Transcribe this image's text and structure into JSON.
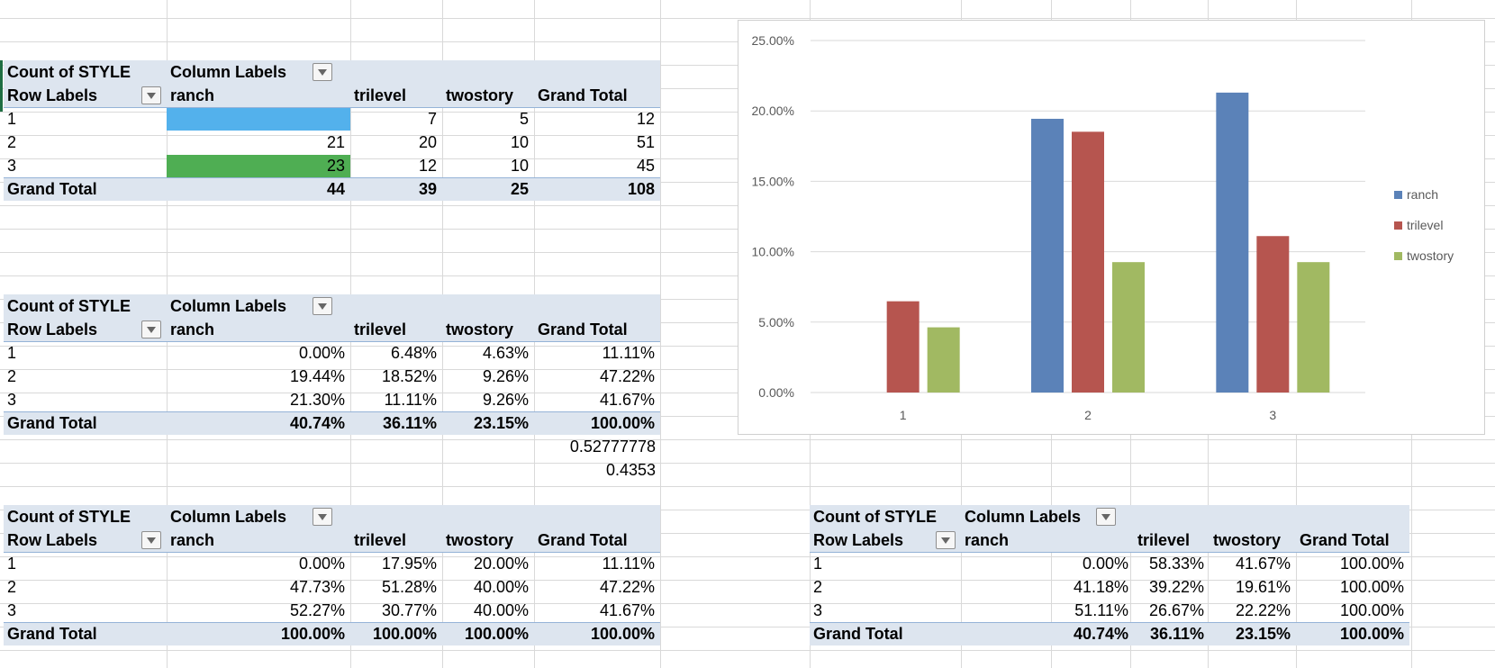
{
  "pivots": [
    {
      "id": "p1",
      "count_label": "Count of STYLE",
      "column_labels": "Column Labels",
      "row_labels": "Row Labels",
      "headers": [
        "ranch",
        "trilevel",
        "twostory",
        "Grand Total"
      ],
      "rows": [
        {
          "label": "1",
          "cells": [
            "",
            "7",
            "5",
            "12"
          ]
        },
        {
          "label": "2",
          "cells": [
            "21",
            "20",
            "10",
            "51"
          ]
        },
        {
          "label": "3",
          "cells": [
            "23",
            "12",
            "10",
            "45"
          ]
        }
      ],
      "total": {
        "label": "Grand Total",
        "cells": [
          "44",
          "39",
          "25",
          "108"
        ]
      }
    },
    {
      "id": "p2",
      "count_label": "Count of STYLE",
      "column_labels": "Column Labels",
      "row_labels": "Row Labels",
      "headers": [
        "ranch",
        "trilevel",
        "twostory",
        "Grand Total"
      ],
      "rows": [
        {
          "label": "1",
          "cells": [
            "0.00%",
            "6.48%",
            "4.63%",
            "11.11%"
          ]
        },
        {
          "label": "2",
          "cells": [
            "19.44%",
            "18.52%",
            "9.26%",
            "47.22%"
          ]
        },
        {
          "label": "3",
          "cells": [
            "21.30%",
            "11.11%",
            "9.26%",
            "41.67%"
          ]
        }
      ],
      "total": {
        "label": "Grand Total",
        "cells": [
          "40.74%",
          "36.11%",
          "23.15%",
          "100.00%"
        ]
      }
    },
    {
      "id": "p3",
      "count_label": "Count of STYLE",
      "column_labels": "Column Labels",
      "row_labels": "Row Labels",
      "headers": [
        "ranch",
        "trilevel",
        "twostory",
        "Grand Total"
      ],
      "rows": [
        {
          "label": "1",
          "cells": [
            "0.00%",
            "17.95%",
            "20.00%",
            "11.11%"
          ]
        },
        {
          "label": "2",
          "cells": [
            "47.73%",
            "51.28%",
            "40.00%",
            "47.22%"
          ]
        },
        {
          "label": "3",
          "cells": [
            "52.27%",
            "30.77%",
            "40.00%",
            "41.67%"
          ]
        }
      ],
      "total": {
        "label": "Grand Total",
        "cells": [
          "100.00%",
          "100.00%",
          "100.00%",
          "100.00%"
        ]
      }
    },
    {
      "id": "p4",
      "count_label": "Count of STYLE",
      "column_labels": "Column Labels",
      "row_labels": "Row Labels",
      "headers": [
        "ranch",
        "trilevel",
        "twostory",
        "Grand Total"
      ],
      "rows": [
        {
          "label": "1",
          "cells": [
            "0.00%",
            "58.33%",
            "41.67%",
            "100.00%"
          ]
        },
        {
          "label": "2",
          "cells": [
            "41.18%",
            "39.22%",
            "19.61%",
            "100.00%"
          ]
        },
        {
          "label": "3",
          "cells": [
            "51.11%",
            "26.67%",
            "22.22%",
            "100.00%"
          ]
        }
      ],
      "total": {
        "label": "Grand Total",
        "cells": [
          "40.74%",
          "36.11%",
          "23.15%",
          "100.00%"
        ]
      }
    }
  ],
  "extra_values": [
    "0.52777778",
    "0.4353"
  ],
  "colors": {
    "band": "#dde5ef",
    "highlight_blue": "#53b1ec",
    "highlight_green": "#4fae53",
    "ranch": "#5b82b8",
    "trilevel": "#b6554f",
    "twostory": "#a1b962"
  },
  "chart_data": {
    "type": "bar",
    "categories": [
      "1",
      "2",
      "3"
    ],
    "series": [
      {
        "name": "ranch",
        "values": [
          0.0,
          19.44,
          21.3
        ]
      },
      {
        "name": "trilevel",
        "values": [
          6.48,
          18.52,
          11.11
        ]
      },
      {
        "name": "twostory",
        "values": [
          4.63,
          9.26,
          9.26
        ]
      }
    ],
    "yticks": [
      "0.00%",
      "5.00%",
      "10.00%",
      "15.00%",
      "20.00%",
      "25.00%"
    ],
    "ylim": [
      0,
      25
    ],
    "grid": true,
    "legend": "right"
  }
}
